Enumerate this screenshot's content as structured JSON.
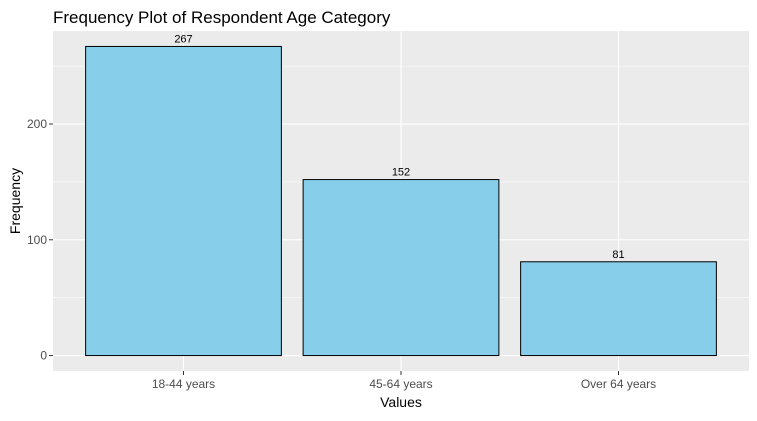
{
  "chart_data": {
    "type": "bar",
    "title": "Frequency Plot of Respondent Age Category",
    "xlabel": "Values",
    "ylabel": "Frequency",
    "categories": [
      "18-44 years",
      "45-64 years",
      "Over 64 years"
    ],
    "values": [
      267,
      152,
      81
    ],
    "data_labels": [
      "267",
      "152",
      "81"
    ],
    "ylim": [
      -13.35,
      280.35
    ],
    "y_ticks": [
      0,
      100,
      200
    ],
    "grid": true,
    "legend": "none",
    "colors": {
      "bar_fill": "#87CEEB",
      "bar_stroke": "#000000",
      "panel_background": "#EBEBEB",
      "grid": "#FFFFFF",
      "text": "#000000",
      "axis_text": "#4D4D4D"
    }
  }
}
